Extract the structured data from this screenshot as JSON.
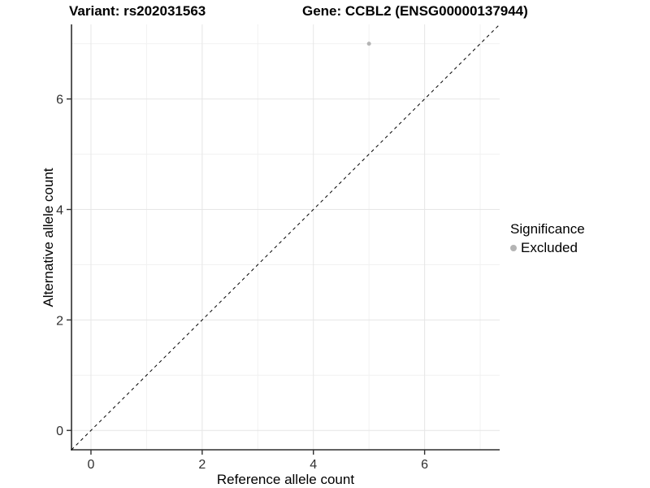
{
  "titles": {
    "variant": "Variant: rs202031563",
    "gene": "Gene: CCBL2 (ENSG00000137944)"
  },
  "chart_data": {
    "type": "scatter",
    "title_left": "Variant: rs202031563",
    "title_right": "Gene: CCBL2 (ENSG00000137944)",
    "xlabel": "Reference allele count",
    "ylabel": "Alternative allele count",
    "xlim": [
      -0.35,
      7.35
    ],
    "ylim": [
      -0.35,
      7.35
    ],
    "xticks": [
      0,
      2,
      4,
      6
    ],
    "yticks": [
      0,
      2,
      4,
      6
    ],
    "grid": {
      "major": [
        0,
        2,
        4,
        6
      ],
      "minor": [
        1,
        3,
        5,
        7
      ],
      "shown": true
    },
    "reference_line": {
      "kind": "identity",
      "style": "dashed",
      "from": [
        -0.35,
        -0.35
      ],
      "to": [
        7.35,
        7.35
      ]
    },
    "series": [
      {
        "name": "Excluded",
        "color": "#b4b4b4",
        "points": [
          {
            "x": 5,
            "y": 7
          }
        ]
      }
    ],
    "legend": {
      "title": "Significance",
      "position": "right",
      "items": [
        {
          "label": "Excluded",
          "color": "#b4b4b4"
        }
      ]
    }
  },
  "colors": {
    "background": "#ffffff",
    "panel_background": "#ffffff",
    "grid_major": "#e6e6e6",
    "grid_minor": "#f1f1f1",
    "axis_line": "#2f2f2f",
    "tick_label": "#303030",
    "dashed_line": "#000000",
    "point": "#b4b4b4"
  }
}
